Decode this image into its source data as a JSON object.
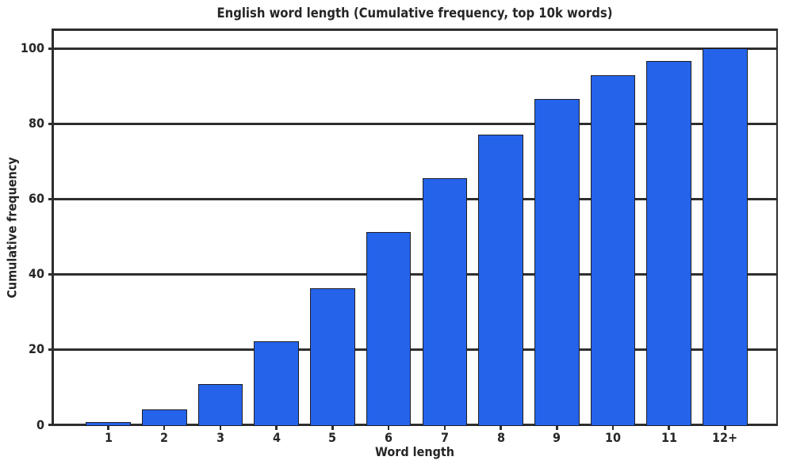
{
  "chart_data": {
    "type": "bar",
    "title": "English word length (Cumulative frequency, top 10k words)",
    "xlabel": "Word length",
    "ylabel": "Cumulative frequency",
    "categories": [
      "1",
      "2",
      "3",
      "4",
      "5",
      "6",
      "7",
      "8",
      "9",
      "10",
      "11",
      "12+"
    ],
    "values": [
      0.75,
      4.1,
      10.9,
      22.3,
      36.2,
      51.2,
      65.6,
      77.2,
      86.6,
      92.8,
      96.6,
      100
    ],
    "yticks": [
      0,
      20,
      40,
      60,
      80,
      100
    ],
    "ylim": [
      0,
      105
    ],
    "grid": "horizontal",
    "legend": "none",
    "colors": {
      "bar_fill": "#2563eb",
      "bar_edge": "#1f1f1f",
      "line": "#2e2e2e",
      "text": "#262626"
    }
  }
}
